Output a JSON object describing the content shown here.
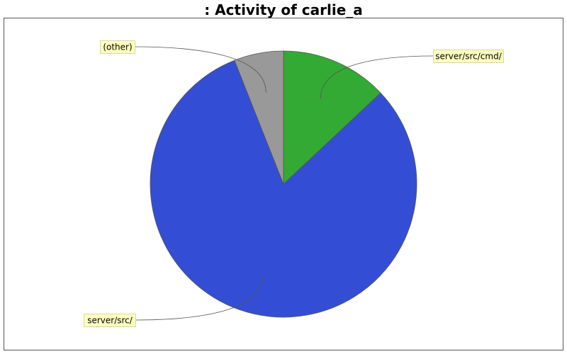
{
  "chart_data": {
    "type": "pie",
    "title": ": Activity of carlie_a",
    "slices": [
      {
        "label": "server/src/cmd/",
        "value": 13,
        "color": "#33aa33"
      },
      {
        "label": "server/src/",
        "value": 81,
        "color": "#334ed5"
      },
      {
        "label": "(other)",
        "value": 6,
        "color": "#999999"
      }
    ],
    "legend": "none",
    "label_style": "callout"
  }
}
